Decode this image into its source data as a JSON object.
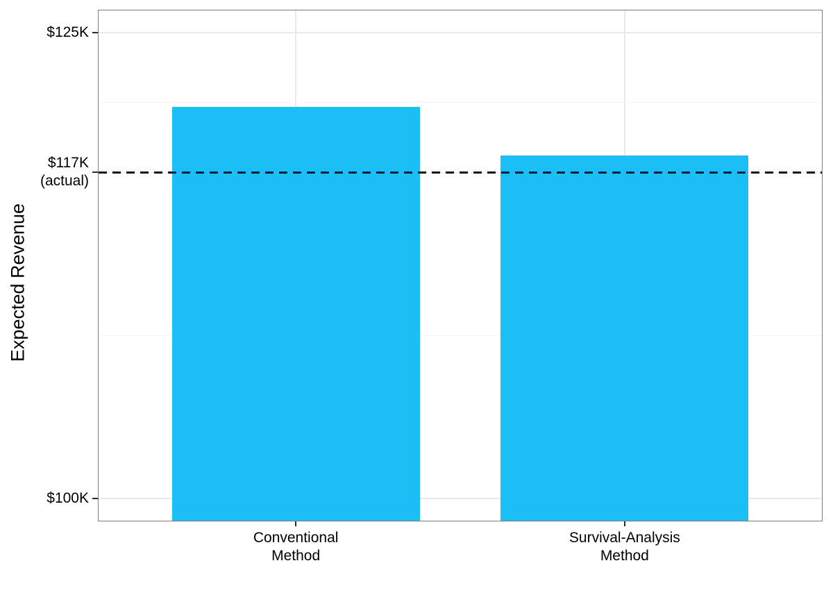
{
  "chart_data": {
    "type": "bar",
    "title": "",
    "categories": [
      "Conventional Method",
      "Survival-Analysis Method"
    ],
    "category_label_lines": [
      [
        "Conventional",
        "Method"
      ],
      [
        "Survival-Analysis",
        "Method"
      ]
    ],
    "values": [
      121.0,
      118.4
    ],
    "values_unit": "thousands of USD",
    "xlabel": "",
    "ylabel": "Expected Revenue",
    "ylim": [
      98.8,
      126.2
    ],
    "y_ticks": [
      {
        "value": 125,
        "lines": [
          "$125K"
        ]
      },
      {
        "value": 117.5,
        "lines": [
          "$117K",
          "(actual)"
        ]
      },
      {
        "value": 100,
        "lines": [
          "$100K"
        ]
      }
    ],
    "y_minor_gridlines": [
      121.25,
      108.75
    ],
    "reference_line": {
      "value": 117.5,
      "label": "$117K (actual)",
      "style": "dashed",
      "color": "#141414"
    },
    "bar_color": "#1BBEF5",
    "grid": true,
    "legend": false,
    "background": "#FFFFFF"
  }
}
